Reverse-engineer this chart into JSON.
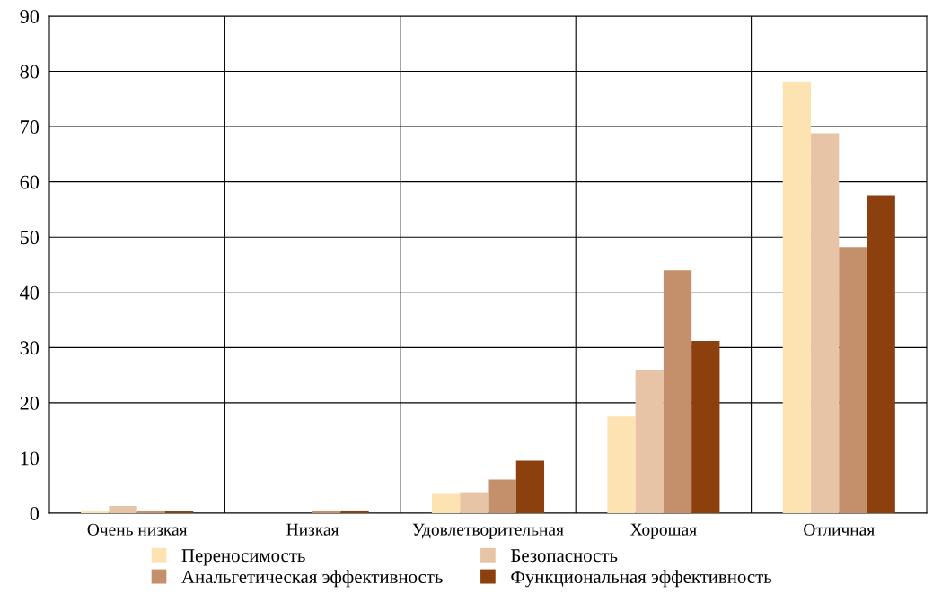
{
  "chart_data": {
    "type": "bar",
    "categories": [
      "Очень низкая",
      "Низкая",
      "Удовлетворительная",
      "Хорошая",
      "Отличная"
    ],
    "series": [
      {
        "name": "Переносимость",
        "color": "#fde2b2",
        "values": [
          0.5,
          0,
          3.5,
          17.5,
          78.2
        ]
      },
      {
        "name": "Безопасность",
        "color": "#e8c4a6",
        "values": [
          1.3,
          0,
          3.8,
          26,
          68.8
        ]
      },
      {
        "name": "Анальгетическая эффективность",
        "color": "#c4906c",
        "values": [
          0.5,
          0.5,
          6.1,
          44,
          48.2
        ]
      },
      {
        "name": "Функциональная эффективность",
        "color": "#8b400e",
        "values": [
          0.5,
          0.5,
          9.5,
          31.2,
          57.6
        ]
      }
    ],
    "ylim": [
      0,
      90
    ],
    "yticks": [
      0,
      10,
      20,
      30,
      40,
      50,
      60,
      70,
      80,
      90
    ],
    "grid": true,
    "legend": "bottom"
  }
}
